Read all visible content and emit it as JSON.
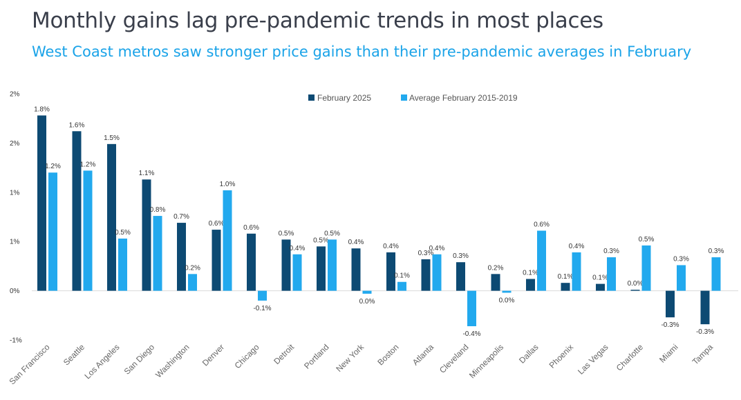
{
  "title": "Monthly gains lag pre-pandemic trends in most places",
  "subtitle": "West Coast metros saw stronger price gains than their pre-pandemic averages in February",
  "colors": {
    "series1": "#0d4a73",
    "series2": "#22a9ee",
    "axis": "#d9d9d9"
  },
  "chart_data": {
    "type": "bar",
    "title": "Monthly gains lag pre-pandemic trends in most places",
    "categories": [
      "San Francisco",
      "Seattle",
      "Los Angeles",
      "San Diego",
      "Washington",
      "Denver",
      "Chicago",
      "Detroit",
      "Portland",
      "New York",
      "Boston",
      "Atlanta",
      "Cleveland",
      "Minneapolis",
      "Dallas",
      "Phoenix",
      "Las Vegas",
      "Charlotte",
      "Miami",
      "Tampa"
    ],
    "series": [
      {
        "name": "February 2025",
        "values": [
          1.78,
          1.62,
          1.49,
          1.13,
          0.69,
          0.62,
          0.58,
          0.52,
          0.45,
          0.43,
          0.39,
          0.32,
          0.29,
          0.17,
          0.12,
          0.08,
          0.07,
          0.01,
          -0.27,
          -0.34
        ],
        "labels": [
          "1.8%",
          "1.6%",
          "1.5%",
          "1.1%",
          "0.7%",
          "0.6%",
          "0.6%",
          "0.5%",
          "0.5%",
          "0.4%",
          "0.4%",
          "0.3%",
          "0.3%",
          "0.2%",
          "0.1%",
          "0.1%",
          "0.1%",
          "0.0%",
          "-0.3%",
          "-0.3%"
        ]
      },
      {
        "name": "Average February 2015-2019",
        "values": [
          1.2,
          1.22,
          0.53,
          0.76,
          0.17,
          1.02,
          -0.1,
          0.37,
          0.52,
          -0.03,
          0.09,
          0.37,
          -0.36,
          -0.02,
          0.61,
          0.39,
          0.34,
          0.46,
          0.26,
          0.34
        ],
        "labels": [
          "1.2%",
          "1.2%",
          "0.5%",
          "0.8%",
          "0.2%",
          "1.0%",
          "-0.1%",
          "0.4%",
          "0.5%",
          "0.0%",
          "0.1%",
          "0.4%",
          "-0.4%",
          "0.0%",
          "0.6%",
          "0.4%",
          "0.3%",
          "0.5%",
          "0.3%",
          "0.3%"
        ]
      }
    ],
    "yticks": [
      2,
      1.5,
      1,
      0.5,
      0,
      -0.5
    ],
    "ytick_labels": [
      "2%",
      "2%",
      "1%",
      "1%",
      "0%",
      "-1%"
    ],
    "ylim": [
      -0.5,
      2
    ],
    "xlabel": "",
    "ylabel": "",
    "legend_position": "top-center"
  }
}
